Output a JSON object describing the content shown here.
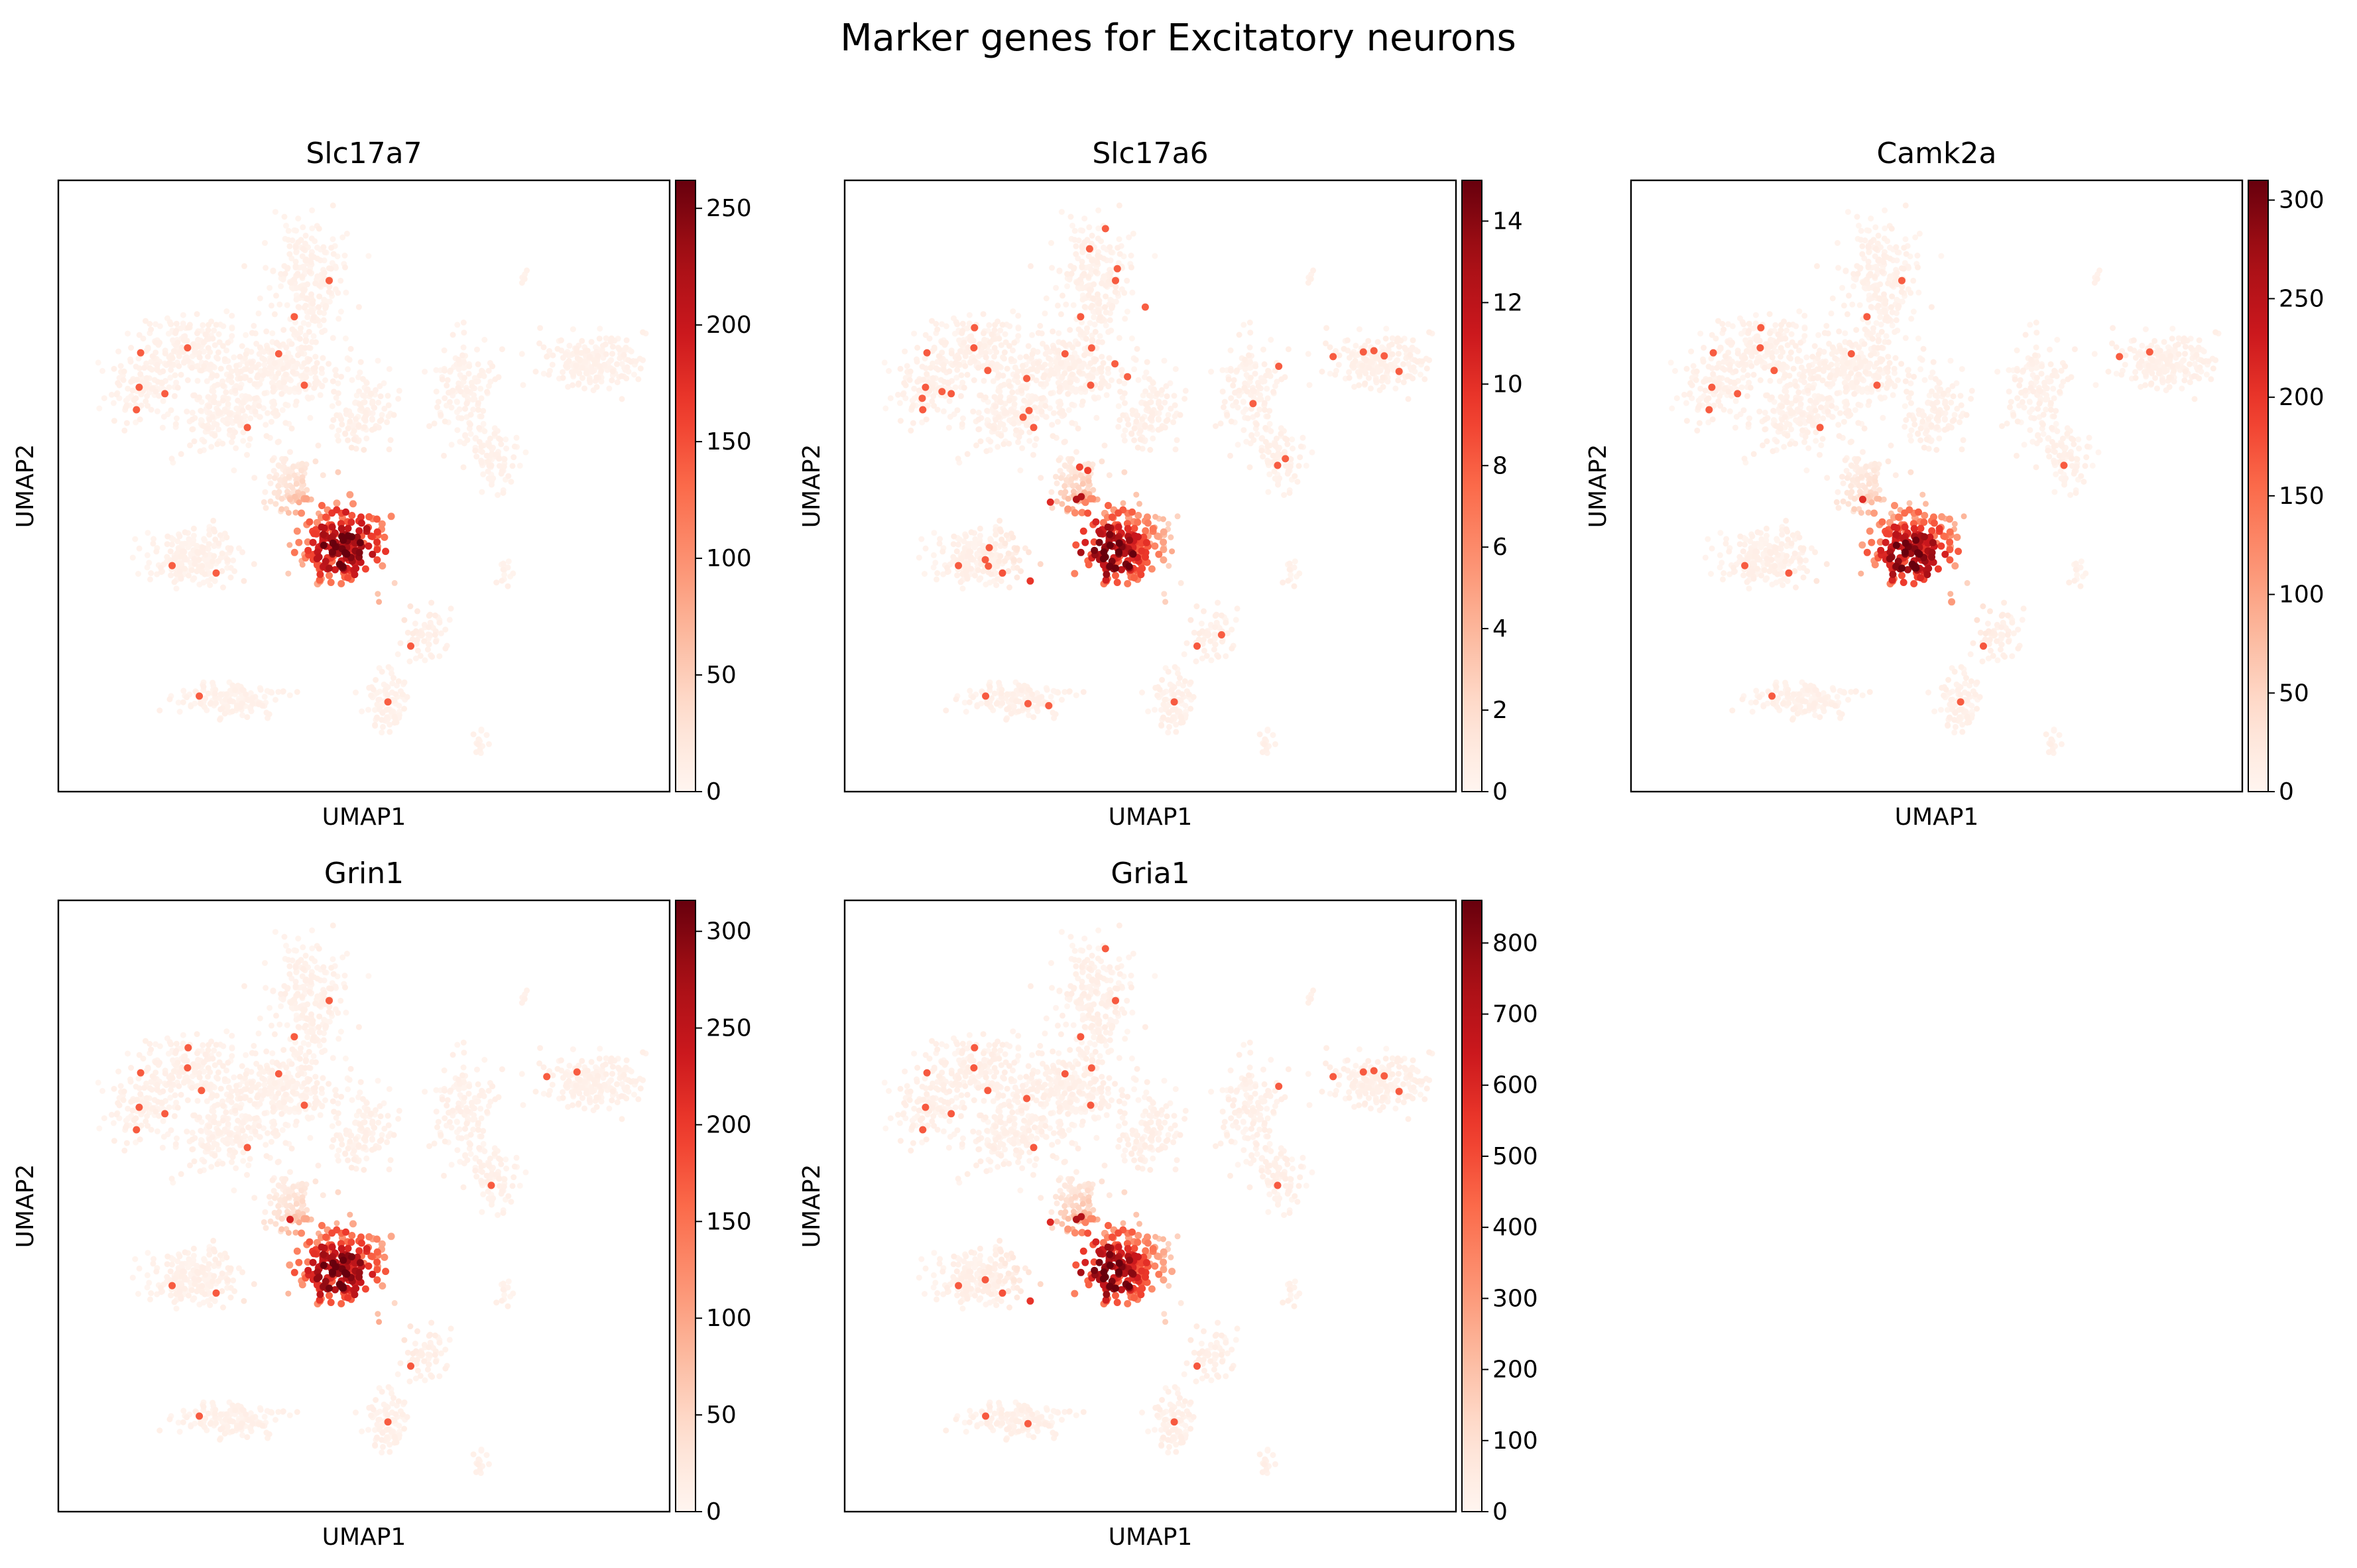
{
  "figure": {
    "title": "Marker genes for Excitatory neurons",
    "colormap": "Reds",
    "colormap_stops": [
      "#fff5f0",
      "#fee0d2",
      "#fcbba1",
      "#fc9272",
      "#fb6a4a",
      "#ef3b2c",
      "#cb181d",
      "#a50f15",
      "#67000d"
    ]
  },
  "chart_data": [
    {
      "type": "scatter",
      "title": "Slc17a7",
      "xlabel": "UMAP1",
      "ylabel": "UMAP2",
      "color_range": [
        0,
        262
      ],
      "colorbar_ticks": [
        0,
        50,
        100,
        150,
        200,
        250
      ],
      "hotspot": [
        0.47,
        0.4
      ],
      "spread": 0.3,
      "noise": 0.05
    },
    {
      "type": "scatter",
      "title": "Slc17a6",
      "xlabel": "UMAP1",
      "ylabel": "UMAP2",
      "color_range": [
        0,
        15
      ],
      "colorbar_ticks": [
        0,
        2,
        4,
        6,
        8,
        10,
        12,
        14
      ],
      "hotspot": [
        0.43,
        0.39
      ],
      "spread": 0.36,
      "noise": 0.18
    },
    {
      "type": "scatter",
      "title": "Camk2a",
      "xlabel": "UMAP1",
      "ylabel": "UMAP2",
      "color_range": [
        0,
        310
      ],
      "colorbar_ticks": [
        0,
        50,
        100,
        150,
        200,
        250,
        300
      ],
      "hotspot": [
        0.46,
        0.38
      ],
      "spread": 0.34,
      "noise": 0.07
    },
    {
      "type": "scatter",
      "title": "Grin1",
      "xlabel": "UMAP1",
      "ylabel": "UMAP2",
      "color_range": [
        0,
        316
      ],
      "colorbar_ticks": [
        0,
        50,
        100,
        150,
        200,
        250,
        300
      ],
      "hotspot": [
        0.46,
        0.39
      ],
      "spread": 0.34,
      "noise": 0.07
    },
    {
      "type": "scatter",
      "title": "Gria1",
      "xlabel": "UMAP1",
      "ylabel": "UMAP2",
      "color_range": [
        0,
        860
      ],
      "colorbar_ticks": [
        0,
        100,
        200,
        300,
        400,
        500,
        600,
        700,
        800
      ],
      "hotspot": [
        0.43,
        0.39
      ],
      "spread": 0.4,
      "noise": 0.12
    }
  ]
}
